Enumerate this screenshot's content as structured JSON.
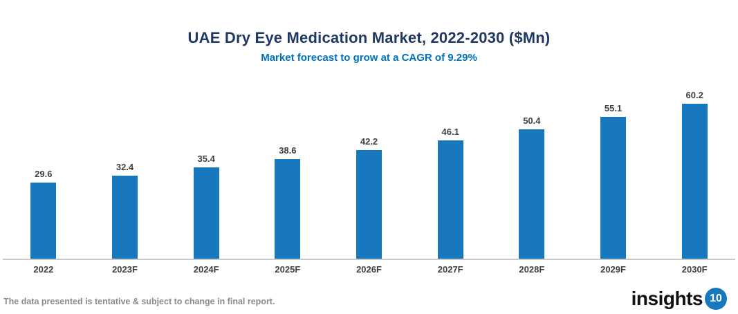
{
  "header": {
    "title": "UAE Dry Eye Medication Market, 2022-2030 ($Mn)",
    "subtitle": "Market forecast to grow at a CAGR of 9.29%"
  },
  "chart_data": {
    "type": "bar",
    "title": "UAE Dry Eye Medication Market, 2022-2030 ($Mn)",
    "subtitle": "Market forecast to grow at a CAGR of 9.29%",
    "categories": [
      "2022",
      "2023F",
      "2024F",
      "2025F",
      "2026F",
      "2027F",
      "2028F",
      "2029F",
      "2030F"
    ],
    "values": [
      29.6,
      32.4,
      35.4,
      38.6,
      42.2,
      46.1,
      50.4,
      55.1,
      60.2
    ],
    "xlabel": "",
    "ylabel": "",
    "ylim": [
      0,
      71
    ],
    "grid": false,
    "legend": false,
    "value_labels_shown": true,
    "cagr_percent": 9.29
  },
  "colors": {
    "bar": "#1878BE",
    "title": "#1F3864",
    "subtitle": "#0070C0",
    "axis_line": "#C9C9C9",
    "data_label": "#404040",
    "footer_text": "#8A8A8A",
    "logo_badge_bg": "#1878BE"
  },
  "footer": {
    "disclaimer": "The data presented is tentative & subject to change in final report.",
    "logo_text": "insights",
    "logo_badge": "10"
  }
}
